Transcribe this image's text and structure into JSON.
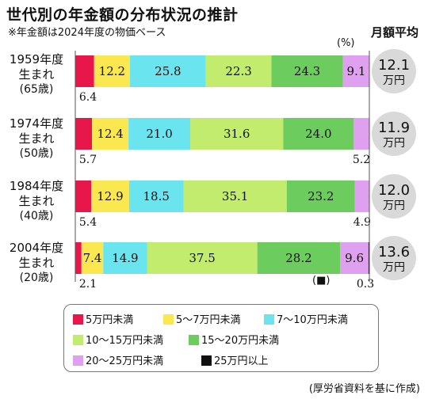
{
  "title": "世代別の年金額の分布状況の推計",
  "subtitle": "※年金額は2024年度の物価ベース",
  "unit_label": "(%)",
  "avg_header": "月額平均",
  "source": "(厚労省資料を基に作成)",
  "colors": {
    "5万円未満": "#e8174b",
    "5〜7万円未満": "#fbe74f",
    "7〜10万円未満": "#6ae4ee",
    "10〜15万円未満": "#c2ec6d",
    "15〜20万円未満": "#6dcc5e",
    "20〜25万円未満": "#dfa0ef",
    "25万円以上": "#111111"
  },
  "legend": [
    {
      "label": "5万円未満",
      "color": "#e8174b"
    },
    {
      "label": "5〜7万円未満",
      "color": "#fbe74f"
    },
    {
      "label": "7〜10万円未満",
      "color": "#6ae4ee"
    },
    {
      "label": "10〜15万円未満",
      "color": "#c2ec6d"
    },
    {
      "label": "15〜20万円未満",
      "color": "#6dcc5e"
    },
    {
      "label": "20〜25万円未満",
      "color": "#dfa0ef"
    },
    {
      "label": "25万円以上",
      "color": "#111111"
    }
  ],
  "rows": [
    {
      "gen_line1": "1959年度",
      "gen_line2": "生まれ",
      "age": "(65歳)",
      "avg_value": "12.1",
      "avg_unit": "万円"
    },
    {
      "gen_line1": "1974年度",
      "gen_line2": "生まれ",
      "age": "(50歳)",
      "avg_value": "11.9",
      "avg_unit": "万円"
    },
    {
      "gen_line1": "1984年度",
      "gen_line2": "生まれ",
      "age": "(40歳)",
      "avg_value": "12.0",
      "avg_unit": "万円"
    },
    {
      "gen_line1": "2004年度",
      "gen_line2": "生まれ",
      "age": "(20歳)",
      "avg_value": "13.6",
      "avg_unit": "万円"
    }
  ],
  "black_note": "(■)",
  "chart_data": {
    "type": "bar",
    "stacked": true,
    "orientation": "horizontal",
    "title": "世代別の年金額の分布状況の推計",
    "unit": "%",
    "categories": [
      "1959年度生まれ(65歳)",
      "1974年度生まれ(50歳)",
      "1984年度生まれ(40歳)",
      "2004年度生まれ(20歳)"
    ],
    "series": [
      {
        "name": "5万円未満",
        "values": [
          6.4,
          5.7,
          5.4,
          2.1
        ]
      },
      {
        "name": "5〜7万円未満",
        "values": [
          12.2,
          12.4,
          12.9,
          7.4
        ]
      },
      {
        "name": "7〜10万円未満",
        "values": [
          25.8,
          21.0,
          18.5,
          14.9
        ]
      },
      {
        "name": "10〜15万円未満",
        "values": [
          22.3,
          31.6,
          35.1,
          37.5
        ]
      },
      {
        "name": "15〜20万円未満",
        "values": [
          24.3,
          24.0,
          23.2,
          28.2
        ]
      },
      {
        "name": "20〜25万円未満",
        "values": [
          9.1,
          5.2,
          4.9,
          9.6
        ]
      },
      {
        "name": "25万円以上",
        "values": [
          0,
          0,
          0,
          0.3
        ]
      }
    ],
    "labels": [
      [
        "6.4",
        "12.2",
        "25.8",
        "22.3",
        "24.3",
        "9.1",
        ""
      ],
      [
        "5.7",
        "12.4",
        "21.0",
        "31.6",
        "24.0",
        "5.2",
        ""
      ],
      [
        "5.4",
        "12.9",
        "18.5",
        "35.1",
        "23.2",
        "4.9",
        ""
      ],
      [
        "2.1",
        "7.4",
        "14.9",
        "37.5",
        "28.2",
        "9.6",
        "0.3"
      ]
    ],
    "label_below": [
      [
        true,
        false,
        false,
        false,
        false,
        false,
        false
      ],
      [
        true,
        false,
        false,
        false,
        false,
        true,
        false
      ],
      [
        true,
        false,
        false,
        false,
        false,
        true,
        false
      ],
      [
        true,
        false,
        false,
        false,
        false,
        false,
        true
      ]
    ],
    "monthly_average": [
      "12.1万円",
      "11.9万円",
      "12.0万円",
      "13.6万円"
    ],
    "xlim": [
      0,
      100
    ],
    "legend_position": "bottom",
    "grid": false
  }
}
